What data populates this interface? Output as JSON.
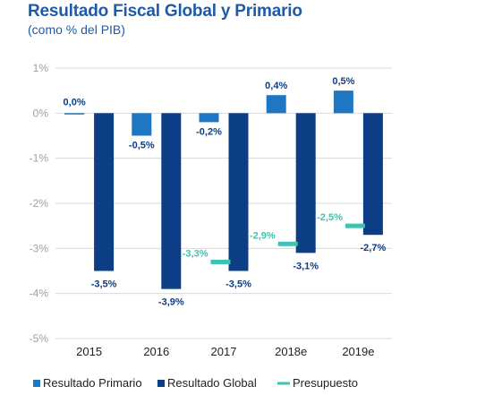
{
  "title": "Resultado Fiscal Global y Primario",
  "subtitle": "(como % del PIB)",
  "colors": {
    "primario": "#1f77c4",
    "global": "#0c3e85",
    "presupuesto": "#3fc1b4",
    "axis_text": "#a0a0a0",
    "grid": "#d9d9d9"
  },
  "chart_data": {
    "type": "bar",
    "categories": [
      "2015",
      "2016",
      "2017",
      "2018e",
      "2019e"
    ],
    "ylim": [
      -5,
      1
    ],
    "yticks": [
      1,
      0,
      -1,
      -2,
      -3,
      -4,
      -5
    ],
    "ytick_labels": [
      "1%",
      "0%",
      "-1%",
      "-2%",
      "-3%",
      "-4%",
      "-5%"
    ],
    "grid": true,
    "legend_position": "bottom",
    "series": [
      {
        "name": "Resultado Primario",
        "type": "bar",
        "values": [
          0.0,
          -0.5,
          -0.2,
          0.4,
          0.5
        ],
        "labels": [
          "0,0%",
          "-0,5%",
          "-0,2%",
          "0,4%",
          "0,5%"
        ]
      },
      {
        "name": "Resultado Global",
        "type": "bar",
        "values": [
          -3.5,
          -3.9,
          -3.5,
          -3.1,
          -2.7
        ],
        "labels": [
          "-3,5%",
          "-3,9%",
          "-3,5%",
          "-3,1%",
          "-2,7%"
        ]
      },
      {
        "name": "Presupuesto",
        "type": "marker",
        "values": [
          null,
          null,
          -3.3,
          -2.9,
          -2.5
        ],
        "labels": [
          "",
          "",
          "-3,3%",
          "-2,9%",
          "-2,5%"
        ]
      }
    ]
  }
}
